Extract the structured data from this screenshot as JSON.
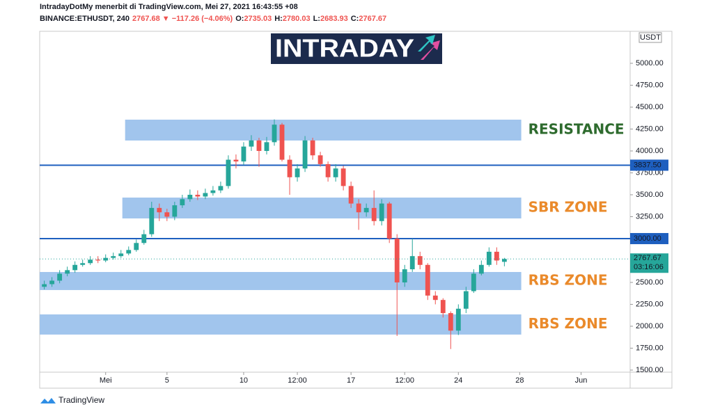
{
  "chart_data": {
    "type": "candlestick",
    "title": "IntradayDotMy menerbit di TradingView.com, Mei 27, 2021 16:43:55 +08",
    "subtitle_parts": [
      {
        "text": "BINANCE:ETHUSDT, 240",
        "color": "#131722"
      },
      {
        "text": "2767.68 ▼ −117.26 (−4.06%)",
        "color": "#ef5350"
      },
      {
        "text": "O:",
        "color": "#131722"
      },
      {
        "text": "2735.03",
        "color": "#ef5350"
      },
      {
        "text": "H:",
        "color": "#131722"
      },
      {
        "text": "2780.03",
        "color": "#ef5350"
      },
      {
        "text": "L:",
        "color": "#131722"
      },
      {
        "text": "2683.93",
        "color": "#ef5350"
      },
      {
        "text": "C:",
        "color": "#131722"
      },
      {
        "text": "2767.67",
        "color": "#ef5350"
      }
    ],
    "logo": "INTRADAY",
    "currency": "USDT",
    "footer": "TradingView",
    "up_color": "#26a69a",
    "down_color": "#ef5350",
    "xlim": [
      -3.3,
      35.2
    ],
    "xticks": [
      {
        "value": 1,
        "label": "Mei"
      },
      {
        "value": 5,
        "label": "5"
      },
      {
        "value": 10,
        "label": "10"
      },
      {
        "value": 13.5,
        "label": "12:00"
      },
      {
        "value": 17,
        "label": "17"
      },
      {
        "value": 20.5,
        "label": "12:00"
      },
      {
        "value": 24,
        "label": "24"
      },
      {
        "value": 28,
        "label": "28"
      },
      {
        "value": 32,
        "label": "Jun"
      }
    ],
    "ylim": [
      1476,
      5365
    ],
    "yticks": [
      {
        "value": 1500,
        "label": "1500.00"
      },
      {
        "value": 1750,
        "label": "1750.00"
      },
      {
        "value": 2000,
        "label": "2000.00"
      },
      {
        "value": 2250,
        "label": "2250.00"
      },
      {
        "value": 2500,
        "label": "2500.00"
      },
      {
        "value": 2750,
        "label": "2750.00"
      },
      {
        "value": 3000,
        "label": "3000.00"
      },
      {
        "value": 3250,
        "label": "3250.00"
      },
      {
        "value": 3500,
        "label": "3500.00"
      },
      {
        "value": 3750,
        "label": "3750.00"
      },
      {
        "value": 4000,
        "label": "4000.00"
      },
      {
        "value": 4250,
        "label": "4250.00"
      },
      {
        "value": 4500,
        "label": "4500.00"
      },
      {
        "value": 4750,
        "label": "4750.00"
      },
      {
        "value": 5000,
        "label": "5000.00"
      }
    ],
    "grid": false,
    "candles": {
      "x": [
        -3,
        -2.5,
        -2,
        -1.5,
        -1,
        -0.5,
        0,
        0.5,
        1,
        1.5,
        2,
        2.5,
        3,
        3.5,
        4,
        4.5,
        5,
        5.5,
        6,
        6.5,
        7,
        7.5,
        8,
        8.5,
        9,
        9.5,
        10,
        10.5,
        11,
        11.5,
        12,
        12.5,
        13,
        13.5,
        14,
        14.5,
        15,
        15.5,
        16,
        16.5,
        17,
        17.5,
        18,
        18.5,
        19,
        19.5,
        20,
        20.5,
        21,
        21.5,
        22,
        22.5,
        23,
        23.5,
        24,
        24.5,
        25,
        25.5,
        26,
        26.5,
        27
      ],
      "open": [
        2450,
        2480,
        2520,
        2600,
        2640,
        2700,
        2720,
        2760,
        2750,
        2780,
        2800,
        2830,
        2870,
        2950,
        3050,
        3350,
        3300,
        3250,
        3380,
        3450,
        3500,
        3480,
        3520,
        3550,
        3600,
        3900,
        3880,
        4050,
        4120,
        4000,
        4100,
        4300,
        3900,
        3700,
        3800,
        4120,
        3950,
        3850,
        3700,
        3800,
        3600,
        3400,
        3300,
        3350,
        3200,
        3400,
        3000,
        2500,
        2650,
        2800,
        2700,
        2350,
        2300,
        2150,
        1950,
        2200,
        2400,
        2600,
        2700,
        2850,
        2735.03
      ],
      "high": [
        2520,
        2560,
        2640,
        2680,
        2740,
        2760,
        2800,
        2800,
        2820,
        2840,
        2870,
        2910,
        2990,
        3100,
        3420,
        3400,
        3340,
        3420,
        3500,
        3560,
        3550,
        3570,
        3600,
        3650,
        3950,
        3960,
        4100,
        4180,
        4150,
        4160,
        4360,
        4320,
        3950,
        3850,
        4170,
        4150,
        3990,
        3880,
        3850,
        3830,
        3650,
        3450,
        3400,
        3550,
        3450,
        3420,
        3050,
        2700,
        3000,
        2850,
        2720,
        2400,
        2320,
        2170,
        2250,
        2450,
        2650,
        2750,
        2900,
        2900,
        2780.03
      ],
      "low": [
        2420,
        2450,
        2490,
        2570,
        2610,
        2680,
        2700,
        2720,
        2730,
        2760,
        2780,
        2810,
        2850,
        2930,
        3020,
        3200,
        3200,
        3210,
        3350,
        3420,
        3440,
        3450,
        3490,
        3520,
        3570,
        3800,
        3840,
        4000,
        3820,
        3960,
        4060,
        3880,
        3500,
        3650,
        3760,
        3900,
        3820,
        3650,
        3650,
        3550,
        3350,
        3100,
        3250,
        3150,
        3150,
        2950,
        1890,
        2450,
        2620,
        2650,
        2300,
        2250,
        2100,
        1740,
        1900,
        2150,
        2380,
        2580,
        2680,
        2700,
        2683.93
      ],
      "close": [
        2480,
        2520,
        2600,
        2640,
        2700,
        2720,
        2760,
        2750,
        2780,
        2800,
        2830,
        2870,
        2950,
        3050,
        3350,
        3300,
        3250,
        3380,
        3450,
        3500,
        3480,
        3520,
        3550,
        3600,
        3900,
        3880,
        4050,
        4120,
        4000,
        4100,
        4300,
        3900,
        3700,
        3800,
        4120,
        3950,
        3850,
        3700,
        3800,
        3600,
        3400,
        3300,
        3350,
        3200,
        3400,
        3000,
        2500,
        2650,
        2800,
        2700,
        2350,
        2300,
        2150,
        1950,
        2200,
        2400,
        2600,
        2700,
        2850,
        2750,
        2767.67
      ]
    },
    "price_lines": [
      {
        "value": 3837.5,
        "label": "3837.50",
        "color": "#1e5fbf"
      },
      {
        "value": 3000,
        "label": "3000.00",
        "color": "#1e5fbf"
      }
    ],
    "last_price": {
      "value": 2767.67,
      "label": "2767.67",
      "countdown": "03:16:06",
      "color": "#26a69a"
    },
    "zones": [
      {
        "label": "RESISTANCE",
        "label_color": "#2e6b2e",
        "ymin": 4119,
        "ymax": 4357,
        "xmin": 2.27,
        "xmax": 28.1
      },
      {
        "label": "SBR ZONE",
        "label_color": "#ea8a2b",
        "ymin": 3230,
        "ymax": 3468,
        "xmin": 2.09,
        "xmax": 28.1
      },
      {
        "label": "RBS ZONE",
        "label_color": "#ea8a2b",
        "ymin": 2413,
        "ymax": 2619,
        "xmin": -3.3,
        "xmax": 28.1
      },
      {
        "label": "RBS ZONE",
        "label_color": "#ea8a2b",
        "ymin": 1905,
        "ymax": 2135,
        "xmin": -3.3,
        "xmax": 28.1
      }
    ],
    "zone_color": "#9cc2ec"
  }
}
